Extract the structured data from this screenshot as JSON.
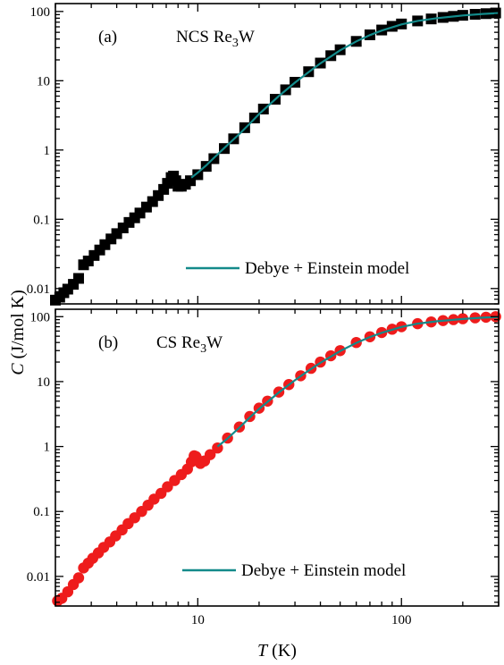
{
  "figure": {
    "xlabel_symbol": "T",
    "xlabel_unit": " (K)",
    "ylabel_symbol": "C",
    "ylabel_unit": " (J/mol K)"
  },
  "chart_data": [
    {
      "type": "scatter",
      "panel_label": "(a)",
      "title_prefix": "NCS Re",
      "title_subscript": "3",
      "title_suffix": "W",
      "x_scale": "log",
      "y_scale": "log",
      "xlim": [
        2,
        300
      ],
      "ylim": [
        0.006,
        130
      ],
      "x_ticks": [
        10,
        100
      ],
      "x_tick_labels": [
        "10",
        "100"
      ],
      "y_ticks": [
        0.01,
        0.1,
        1,
        10,
        100
      ],
      "y_tick_labels": [
        "0.01",
        "0.1",
        "1",
        "10",
        "100"
      ],
      "legend_position": "bottom-right",
      "marker_color": "#000000",
      "fit_color": "#138a8a",
      "series": [
        {
          "marker": "square",
          "points": [
            [
              2.0,
              0.0068
            ],
            [
              2.1,
              0.0075
            ],
            [
              2.2,
              0.0087
            ],
            [
              2.3,
              0.0098
            ],
            [
              2.45,
              0.0115
            ],
            [
              2.6,
              0.014
            ],
            [
              2.75,
              0.022
            ],
            [
              2.9,
              0.025
            ],
            [
              3.1,
              0.03
            ],
            [
              3.3,
              0.036
            ],
            [
              3.5,
              0.043
            ],
            [
              3.75,
              0.052
            ],
            [
              4.0,
              0.062
            ],
            [
              4.3,
              0.075
            ],
            [
              4.6,
              0.09
            ],
            [
              4.9,
              0.105
            ],
            [
              5.2,
              0.123
            ],
            [
              5.6,
              0.15
            ],
            [
              6.0,
              0.18
            ],
            [
              6.4,
              0.22
            ],
            [
              6.8,
              0.27
            ],
            [
              7.1,
              0.33
            ],
            [
              7.4,
              0.4
            ],
            [
              7.6,
              0.42
            ],
            [
              7.8,
              0.36
            ],
            [
              8.0,
              0.3
            ],
            [
              8.3,
              0.3
            ],
            [
              8.7,
              0.32
            ],
            [
              9.2,
              0.36
            ],
            [
              10.0,
              0.44
            ],
            [
              11.0,
              0.58
            ],
            [
              12.0,
              0.75
            ],
            [
              13.5,
              1.05
            ],
            [
              15.0,
              1.45
            ],
            [
              17.0,
              2.1
            ],
            [
              19.0,
              2.9
            ],
            [
              21.0,
              3.9
            ],
            [
              24.0,
              5.4
            ],
            [
              27.0,
              7.4
            ],
            [
              30.0,
              9.5
            ],
            [
              35.0,
              13.5
            ],
            [
              40.0,
              18.0
            ],
            [
              45.0,
              23.0
            ],
            [
              50.0,
              28.0
            ],
            [
              60.0,
              37.0
            ],
            [
              70.0,
              46.0
            ],
            [
              80.0,
              54.0
            ],
            [
              90.0,
              61.0
            ],
            [
              100.0,
              66.0
            ],
            [
              120.0,
              73.0
            ],
            [
              140.0,
              78.0
            ],
            [
              160.0,
              82.0
            ],
            [
              180.0,
              85.0
            ],
            [
              200.0,
              88.0
            ],
            [
              230.0,
              91.0
            ],
            [
              260.0,
              93.0
            ],
            [
              290.0,
              95.0
            ]
          ]
        },
        {
          "name": "Debye + Einstein model",
          "style": "line",
          "points": [
            [
              9.3,
              0.4
            ],
            [
              10.0,
              0.47
            ],
            [
              11.0,
              0.6
            ],
            [
              12.0,
              0.77
            ],
            [
              14.0,
              1.18
            ],
            [
              16.0,
              1.7
            ],
            [
              18.0,
              2.4
            ],
            [
              20.0,
              3.3
            ],
            [
              25.0,
              6.0
            ],
            [
              30.0,
              9.4
            ],
            [
              35.0,
              13.3
            ],
            [
              40.0,
              17.8
            ],
            [
              50.0,
              27.5
            ],
            [
              60.0,
              37.0
            ],
            [
              70.0,
              45.5
            ],
            [
              80.0,
              53.0
            ],
            [
              100.0,
              65.0
            ],
            [
              120.0,
              73.0
            ],
            [
              150.0,
              80.0
            ],
            [
              200.0,
              87.5
            ],
            [
              250.0,
              92.0
            ],
            [
              300.0,
              95.0
            ]
          ]
        }
      ]
    },
    {
      "type": "scatter",
      "panel_label": "(b)",
      "title_prefix": "CS Re",
      "title_subscript": "3",
      "title_suffix": "W",
      "x_scale": "log",
      "y_scale": "log",
      "xlim": [
        2,
        300
      ],
      "ylim": [
        0.0035,
        130
      ],
      "x_ticks": [
        10,
        100
      ],
      "x_tick_labels": [
        "10",
        "100"
      ],
      "y_ticks": [
        0.01,
        0.1,
        1,
        10,
        100
      ],
      "y_tick_labels": [
        "0.01",
        "0.1",
        "1",
        "10",
        "100"
      ],
      "legend_position": "bottom-right",
      "marker_color": "#ee1c1c",
      "fit_color": "#138a8a",
      "series": [
        {
          "marker": "circle",
          "points": [
            [
              2.05,
              0.0042
            ],
            [
              2.15,
              0.0046
            ],
            [
              2.3,
              0.0058
            ],
            [
              2.45,
              0.0075
            ],
            [
              2.6,
              0.0095
            ],
            [
              2.75,
              0.0135
            ],
            [
              2.9,
              0.016
            ],
            [
              3.05,
              0.019
            ],
            [
              3.25,
              0.023
            ],
            [
              3.45,
              0.028
            ],
            [
              3.7,
              0.034
            ],
            [
              3.95,
              0.042
            ],
            [
              4.25,
              0.052
            ],
            [
              4.55,
              0.065
            ],
            [
              4.9,
              0.08
            ],
            [
              5.3,
              0.1
            ],
            [
              5.7,
              0.125
            ],
            [
              6.1,
              0.155
            ],
            [
              6.6,
              0.19
            ],
            [
              7.1,
              0.24
            ],
            [
              7.7,
              0.3
            ],
            [
              8.3,
              0.37
            ],
            [
              8.9,
              0.45
            ],
            [
              9.3,
              0.58
            ],
            [
              9.6,
              0.72
            ],
            [
              9.8,
              0.7
            ],
            [
              10.0,
              0.62
            ],
            [
              10.3,
              0.55
            ],
            [
              10.8,
              0.6
            ],
            [
              11.5,
              0.75
            ],
            [
              12.5,
              0.95
            ],
            [
              14.0,
              1.35
            ],
            [
              16.0,
              2.0
            ],
            [
              18.0,
              2.9
            ],
            [
              20.0,
              3.9
            ],
            [
              22.0,
              5.0
            ],
            [
              25.0,
              6.9
            ],
            [
              28.0,
              9.0
            ],
            [
              32.0,
              12.3
            ],
            [
              36.0,
              16.0
            ],
            [
              40.0,
              20.0
            ],
            [
              45.0,
              25.0
            ],
            [
              50.0,
              30.0
            ],
            [
              60.0,
              40.0
            ],
            [
              70.0,
              49.0
            ],
            [
              80.0,
              57.0
            ],
            [
              90.0,
              64.0
            ],
            [
              100.0,
              70.0
            ],
            [
              120.0,
              78.0
            ],
            [
              140.0,
              83.0
            ],
            [
              160.0,
              87.0
            ],
            [
              180.0,
              90.0
            ],
            [
              200.0,
              93.0
            ],
            [
              230.0,
              96.0
            ],
            [
              260.0,
              98.0
            ],
            [
              290.0,
              100.0
            ]
          ]
        },
        {
          "name": "Debye + Einstein model",
          "style": "line",
          "points": [
            [
              12.5,
              1.0
            ],
            [
              14.0,
              1.33
            ],
            [
              16.0,
              1.95
            ],
            [
              18.0,
              2.8
            ],
            [
              20.0,
              3.8
            ],
            [
              25.0,
              6.8
            ],
            [
              30.0,
              10.5
            ],
            [
              35.0,
              14.8
            ],
            [
              40.0,
              19.5
            ],
            [
              50.0,
              29.5
            ],
            [
              60.0,
              39.5
            ],
            [
              70.0,
              48.5
            ],
            [
              80.0,
              56.5
            ],
            [
              100.0,
              69.5
            ],
            [
              120.0,
              78.0
            ],
            [
              150.0,
              85.0
            ],
            [
              200.0,
              92.0
            ],
            [
              250.0,
              96.5
            ],
            [
              300.0,
              99.0
            ]
          ]
        }
      ]
    }
  ]
}
